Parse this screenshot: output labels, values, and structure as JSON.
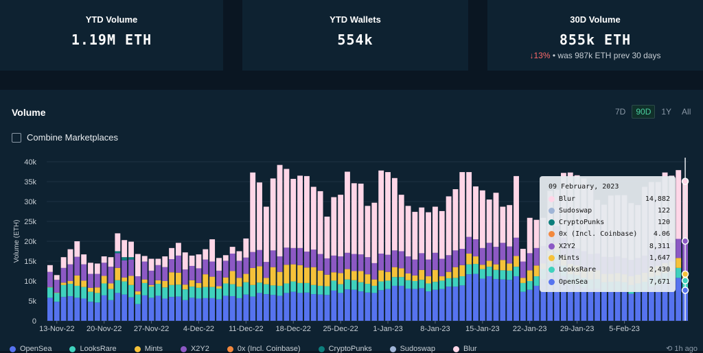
{
  "stats": [
    {
      "label": "YTD Volume",
      "value": "1.19M ETH"
    },
    {
      "label": "YTD Wallets",
      "value": "554k"
    },
    {
      "label": "30D Volume",
      "value": "855k ETH",
      "change": "13%",
      "change_note": "• was 987k ETH prev 30 days"
    }
  ],
  "volume_title": "Volume",
  "ranges": [
    "7D",
    "90D",
    "1Y",
    "All"
  ],
  "active_range": "90D",
  "combine_label": "Combine Marketplaces",
  "updated": "1h ago",
  "tooltip": {
    "title": "09 February, 2023",
    "rows": [
      {
        "name": "Blur",
        "value": "14,882",
        "color": "#ffd6e7"
      },
      {
        "name": "Sudoswap",
        "value": "122",
        "color": "#9fb4d6"
      },
      {
        "name": "CryptoPunks",
        "value": "120",
        "color": "#0d7e7c"
      },
      {
        "name": "0x (Incl. Coinbase)",
        "value": "4.06",
        "color": "#f3883e"
      },
      {
        "name": "X2Y2",
        "value": "8,311",
        "color": "#8c59c4"
      },
      {
        "name": "Mints",
        "value": "1,647",
        "color": "#f5c23a"
      },
      {
        "name": "LooksRare",
        "value": "2,430",
        "color": "#3fd1bd"
      },
      {
        "name": "OpenSea",
        "value": "7,671",
        "color": "#5673ef"
      }
    ]
  },
  "chart_data": {
    "type": "bar",
    "stacked": true,
    "ylabel": "Volume (ETH)",
    "ylim": [
      0,
      40000
    ],
    "yticks": [
      0,
      5000,
      10000,
      15000,
      20000,
      25000,
      30000,
      35000,
      40000
    ],
    "ytick_labels": [
      "0",
      "5k",
      "10k",
      "15k",
      "20k",
      "25k",
      "30k",
      "35k",
      "40k"
    ],
    "x_labels": [
      "13-Nov-22",
      "20-Nov-22",
      "27-Nov-22",
      "4-Dec-22",
      "11-Dec-22",
      "18-Dec-22",
      "25-Dec-22",
      "1-Jan-23",
      "8-Jan-23",
      "15-Jan-23",
      "22-Jan-23",
      "29-Jan-23",
      "5-Feb-23"
    ],
    "series_colors": {
      "OpenSea": "#5673ef",
      "LooksRare": "#3fd1bd",
      "Mints": "#f5c23a",
      "X2Y2": "#8c59c4",
      "CryptoPunks": "#0d7e7c",
      "Blur": "#ffd6e7"
    },
    "series": [
      {
        "name": "OpenSea",
        "values": [
          5800,
          4800,
          6000,
          6200,
          5800,
          5600,
          4800,
          4600,
          6400,
          5200,
          7000,
          6600,
          5900,
          4200,
          6400,
          5800,
          6300,
          5600,
          6000,
          6100,
          5200,
          5800,
          5600,
          5700,
          5700,
          5400,
          6300,
          6200,
          5700,
          6600,
          6100,
          7000,
          6700,
          6500,
          6300,
          7000,
          7300,
          7000,
          7100,
          6700,
          6600,
          6500,
          7600,
          7000,
          7900,
          7800,
          7400,
          7100,
          7000,
          7700,
          8000,
          8800,
          8800,
          8100,
          8000,
          8200,
          7400,
          7800,
          8000,
          8600,
          8600,
          8900,
          11700,
          11800,
          10600,
          11200,
          10500,
          10400,
          10300,
          11200,
          7300,
          7800,
          8800,
          10500,
          12300,
          14300,
          11300,
          9200,
          9000,
          8400,
          8000,
          8100,
          7400,
          7500,
          7600,
          7400,
          6800,
          7200,
          7500,
          8600,
          9000,
          9500,
          9900,
          10800,
          7670
        ]
      },
      {
        "name": "LooksRare",
        "values": [
          2600,
          2200,
          3000,
          3100,
          3000,
          2900,
          2500,
          2400,
          3000,
          2800,
          3200,
          3300,
          3100,
          2400,
          3100,
          2800,
          3000,
          2800,
          3000,
          3000,
          2700,
          2800,
          2700,
          2800,
          2800,
          2700,
          3100,
          3000,
          2900,
          3100,
          2900,
          2600,
          2500,
          2400,
          2500,
          2400,
          2600,
          2500,
          2400,
          2300,
          2200,
          2200,
          2500,
          2200,
          2500,
          2400,
          2300,
          2200,
          1800,
          2200,
          2100,
          2200,
          2200,
          2100,
          2000,
          2100,
          2000,
          2000,
          2100,
          2100,
          2200,
          2300,
          2500,
          2500,
          2400,
          2400,
          2300,
          2300,
          2300,
          2400,
          2200,
          2200,
          2400,
          2500,
          2600,
          2700,
          2600,
          2500,
          2500,
          2400,
          2400,
          2400,
          2300,
          2300,
          2300,
          2300,
          2200,
          2200,
          2300,
          2400,
          2400,
          2500,
          2500,
          2500,
          2430
        ]
      },
      {
        "name": "Mints",
        "values": [
          100,
          100,
          600,
          700,
          2600,
          1600,
          1000,
          1400,
          1900,
          1400,
          3100,
          1000,
          2300,
          800,
          900,
          400,
          900,
          1600,
          3200,
          3000,
          1200,
          1600,
          1200,
          3200,
          2600,
          600,
          1500,
          3300,
          2200,
          2100,
          4300,
          4100,
          1600,
          4600,
          3500,
          4700,
          4300,
          4500,
          3900,
          4500,
          3800,
          2900,
          2100,
          2800,
          2600,
          2300,
          2800,
          2400,
          1600,
          2800,
          2200,
          2500,
          2200,
          1700,
          1400,
          2500,
          1800,
          3000,
          1100,
          1600,
          2700,
          2800,
          2700,
          1900,
          1100,
          1500,
          1400,
          2600,
          1800,
          2700,
          1300,
          2700,
          2700,
          1400,
          2700,
          2400,
          2500,
          2600,
          2400,
          2300,
          2200,
          2200,
          2100,
          2000,
          2100,
          2000,
          2200,
          2200,
          2300,
          2400,
          2400,
          2500,
          2500,
          2500,
          1650
        ]
      },
      {
        "name": "X2Y2",
        "values": [
          3800,
          3200,
          3700,
          4200,
          4700,
          4100,
          3500,
          3400,
          3300,
          4200,
          3700,
          4300,
          4100,
          3800,
          4500,
          3600,
          3800,
          3500,
          3300,
          4300,
          3800,
          3600,
          3700,
          3700,
          3800,
          3900,
          4200,
          4400,
          4300,
          4100,
          4000,
          4100,
          4000,
          4200,
          3900,
          4300,
          4100,
          4300,
          4000,
          4400,
          4200,
          4100,
          4200,
          4200,
          4100,
          4300,
          4200,
          4300,
          4100,
          4200,
          4300,
          4200,
          4300,
          4300,
          4000,
          4200,
          4200,
          4300,
          4400,
          4200,
          4200,
          4100,
          4200,
          4300,
          4200,
          4500,
          4400,
          4300,
          4300,
          4600,
          4100,
          4300,
          4400,
          4400,
          4600,
          4400,
          4500,
          4400,
          4300,
          4400,
          4200,
          4200,
          4300,
          4200,
          4200,
          4100,
          4100,
          4200,
          4300,
          4400,
          4500,
          4600,
          4700,
          4800,
          8300
        ]
      },
      {
        "name": "CryptoPunks",
        "values": [
          0,
          0,
          0,
          0,
          0,
          0,
          0,
          0,
          0,
          0,
          500,
          800,
          600,
          0,
          0,
          0,
          0,
          0,
          0,
          0,
          0,
          0,
          0,
          0,
          0,
          0,
          0,
          0,
          0,
          0,
          0,
          0,
          0,
          0,
          0,
          0,
          0,
          0,
          0,
          0,
          0,
          0,
          0,
          0,
          0,
          0,
          0,
          0,
          0,
          0,
          0,
          0,
          0,
          0,
          0,
          0,
          0,
          0,
          0,
          0,
          0,
          0,
          0,
          0,
          0,
          0,
          0,
          0,
          0,
          0,
          0,
          0,
          0,
          0,
          0,
          0,
          0,
          0,
          0,
          0,
          0,
          0,
          0,
          0,
          0,
          0,
          0,
          0,
          0,
          0,
          0,
          0,
          0,
          0,
          120
        ]
      },
      {
        "name": "Blur",
        "values": [
          1700,
          1200,
          2700,
          3800,
          3900,
          2500,
          2800,
          2600,
          1600,
          2400,
          4500,
          4300,
          3900,
          5600,
          1400,
          3000,
          1600,
          2700,
          2800,
          3200,
          4300,
          2600,
          3500,
          2600,
          5600,
          3200,
          1400,
          1700,
          2400,
          4800,
          20000,
          17000,
          13900,
          18100,
          23000,
          19800,
          17400,
          18200,
          19000,
          15800,
          15800,
          10500,
          14700,
          15500,
          20400,
          17800,
          17800,
          12900,
          15200,
          20900,
          20800,
          18200,
          14200,
          12700,
          12000,
          11500,
          11900,
          11600,
          12000,
          14800,
          15400,
          19300,
          16300,
          13300,
          14500,
          10900,
          13600,
          9100,
          10400,
          15500,
          3200,
          8900,
          7100,
          7100,
          10500,
          9200,
          16300,
          18600,
          18400,
          18300,
          16800,
          13500,
          13100,
          15500,
          15400,
          15800,
          14300,
          13300,
          17300,
          17100,
          16600,
          18200,
          16900,
          17300,
          14900
        ]
      }
    ]
  }
}
